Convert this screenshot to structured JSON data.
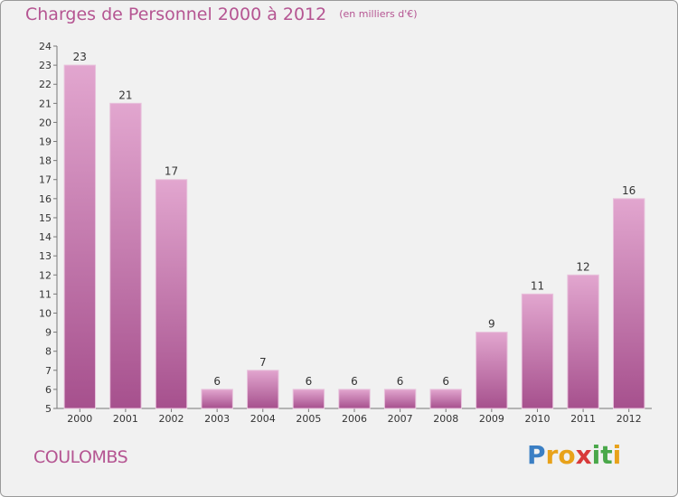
{
  "title": "Charges de Personnel 2000 à 2012",
  "unit_note": "(en milliers d'€)",
  "town": "COULOMBS",
  "brand": {
    "letters": [
      "P",
      "r",
      "o",
      "x",
      "i",
      "t",
      "i"
    ],
    "colors": [
      "#3b7fc4",
      "#e8a21a",
      "#e8a21a",
      "#d83a3a",
      "#4aa84a",
      "#4aa84a",
      "#e8a21a"
    ]
  },
  "colors": {
    "title": "#b55592",
    "bar_light": "#e2a6cf",
    "bar_dark": "#a6508d",
    "background": "#f1f1f1"
  },
  "chart_data": {
    "type": "bar",
    "categories": [
      "2000",
      "2001",
      "2002",
      "2003",
      "2004",
      "2005",
      "2006",
      "2007",
      "2008",
      "2009",
      "2010",
      "2011",
      "2012"
    ],
    "values": [
      23,
      21,
      17,
      6,
      7,
      6,
      6,
      6,
      6,
      9,
      11,
      12,
      16
    ],
    "title": "Charges de Personnel 2000 à 2012",
    "subtitle": "(en milliers d'€)",
    "ylim": [
      5,
      24
    ],
    "yticks": [
      5,
      6,
      7,
      8,
      9,
      10,
      11,
      12,
      13,
      14,
      15,
      16,
      17,
      18,
      19,
      20,
      21,
      22,
      23,
      24
    ],
    "grid": false,
    "legend": "none"
  }
}
